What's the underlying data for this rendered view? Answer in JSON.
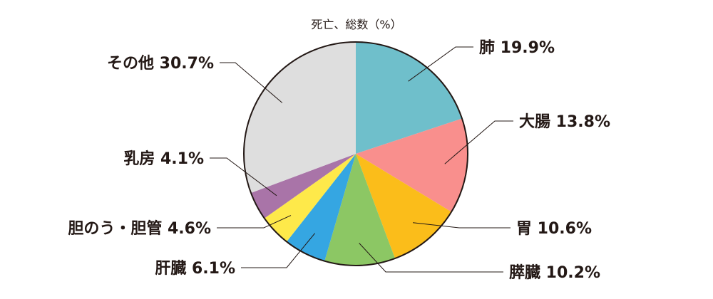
{
  "chart_data": {
    "type": "pie",
    "title": "死亡、総数（%）",
    "start": "12 o'clock",
    "direction": "clockwise",
    "slices": [
      {
        "name": "肺",
        "value": 19.9,
        "label": "肺 19.9%",
        "color": "#6FBFCB"
      },
      {
        "name": "大腸",
        "value": 13.8,
        "label": "大腸 13.8%",
        "color": "#F98F8D"
      },
      {
        "name": "胃",
        "value": 10.6,
        "label": "胃 10.6%",
        "color": "#FBBD1A"
      },
      {
        "name": "膵臓",
        "value": 10.2,
        "label": "膵臓 10.2%",
        "color": "#8CC764"
      },
      {
        "name": "肝臓",
        "value": 6.1,
        "label": "肝臓 6.1%",
        "color": "#35A6E2"
      },
      {
        "name": "胆のう・胆管",
        "value": 4.6,
        "label": "胆のう・胆管 4.6%",
        "color": "#FEE94A"
      },
      {
        "name": "乳房",
        "value": 4.1,
        "label": "乳房 4.1%",
        "color": "#A974A8"
      },
      {
        "name": "その他",
        "value": 30.7,
        "label": "その他 30.7%",
        "color": "#DEDEDE"
      }
    ],
    "border_color": "#231815",
    "leader_color": "#231815"
  }
}
